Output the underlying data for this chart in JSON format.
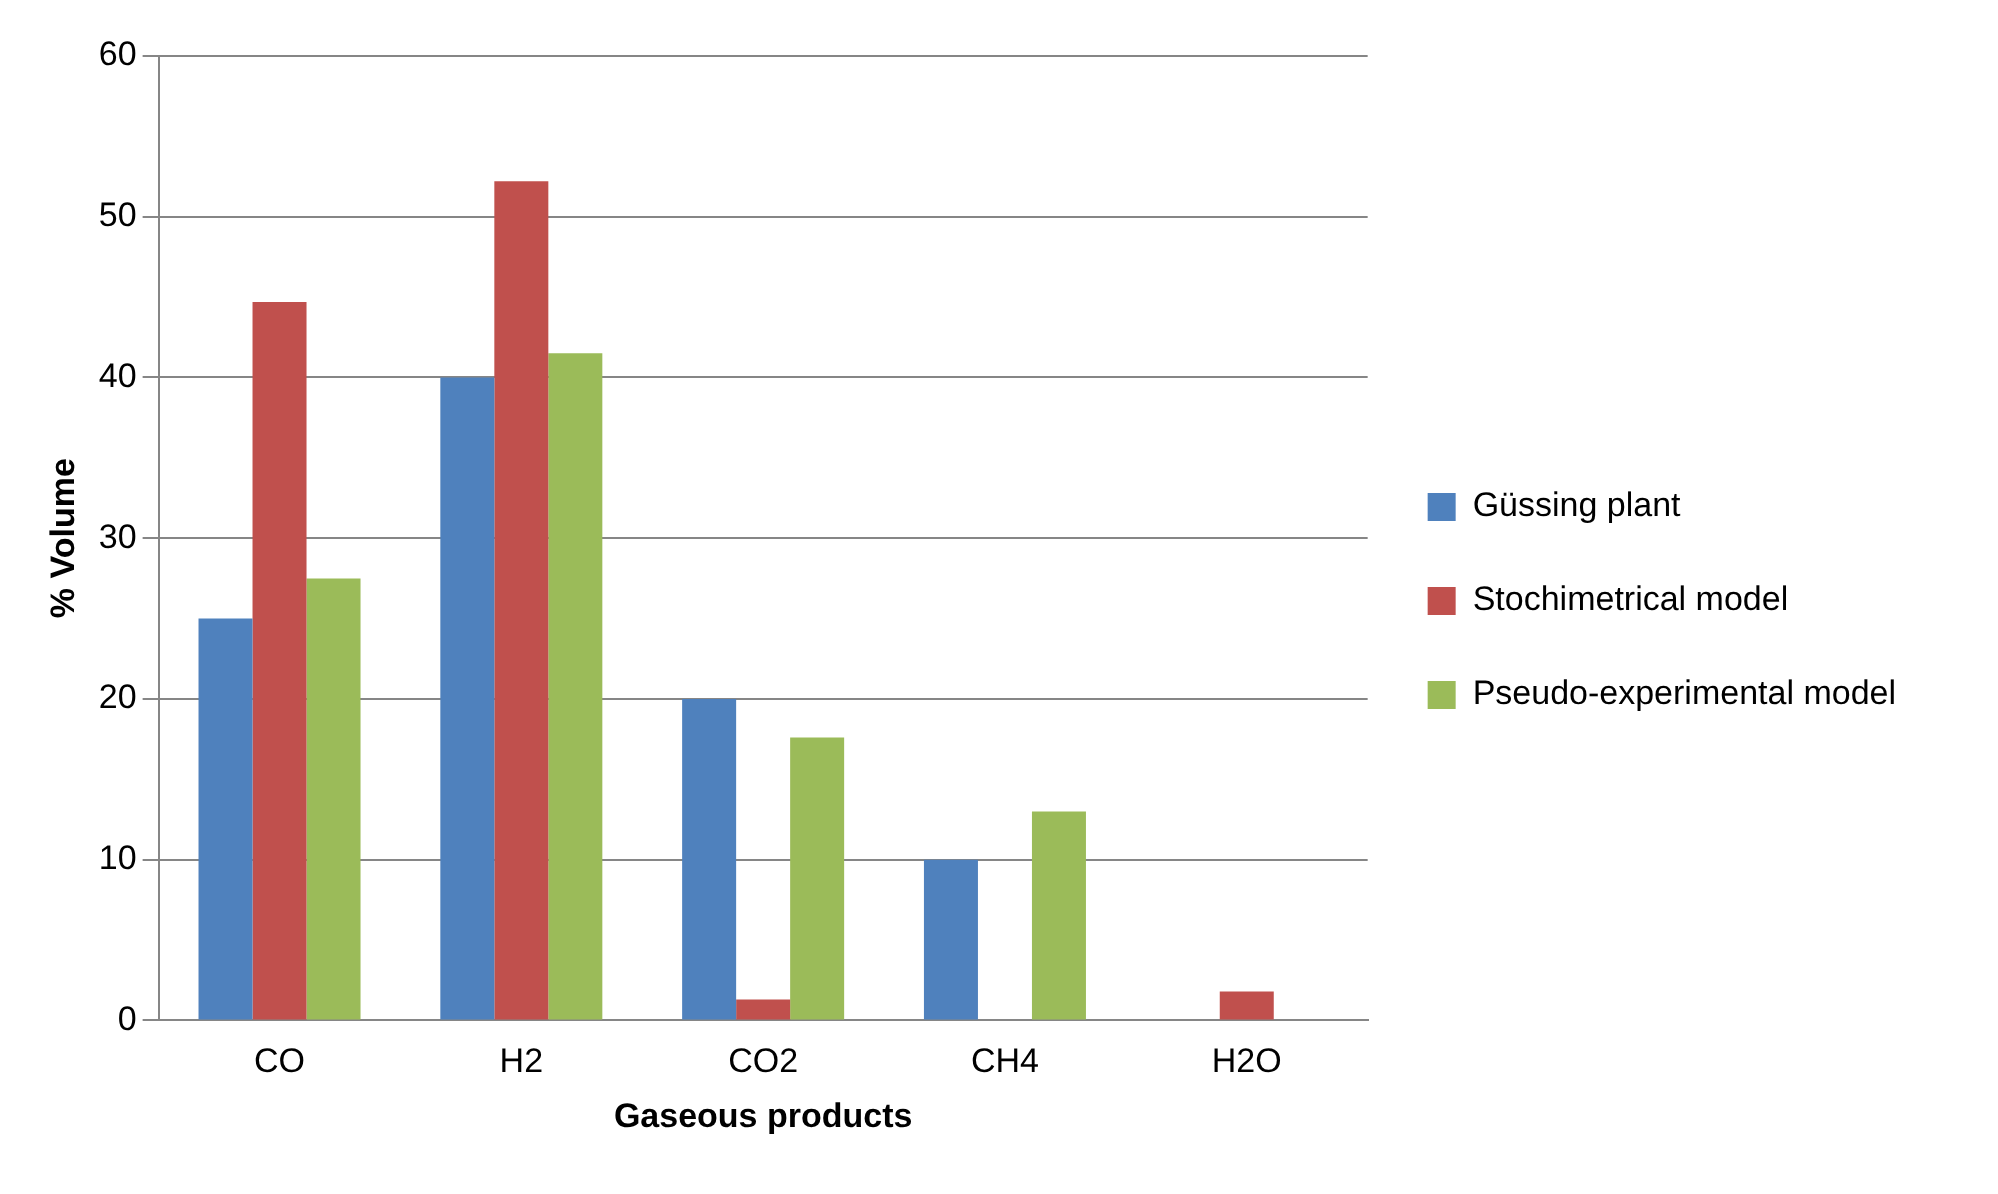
{
  "chart_data": {
    "type": "bar",
    "xlabel": "Gaseous products",
    "ylabel": "% Volume",
    "categories": [
      "CO",
      "H2",
      "CO2",
      "CH4",
      "H2O"
    ],
    "series": [
      {
        "name": "Güssing plant",
        "color": "#4f81bd",
        "values": [
          25,
          40,
          20,
          10,
          null
        ]
      },
      {
        "name": "Stochimetrical model",
        "color": "#c0504d",
        "values": [
          44.7,
          52.2,
          1.3,
          null,
          1.8
        ]
      },
      {
        "name": "Pseudo-experimental model",
        "color": "#9bbb59",
        "values": [
          27.5,
          41.5,
          17.6,
          13,
          null
        ]
      }
    ],
    "ylim": [
      0,
      60
    ],
    "yticks": [
      0,
      10,
      20,
      30,
      40,
      50,
      60
    ],
    "grid": "y",
    "legend": "right"
  }
}
